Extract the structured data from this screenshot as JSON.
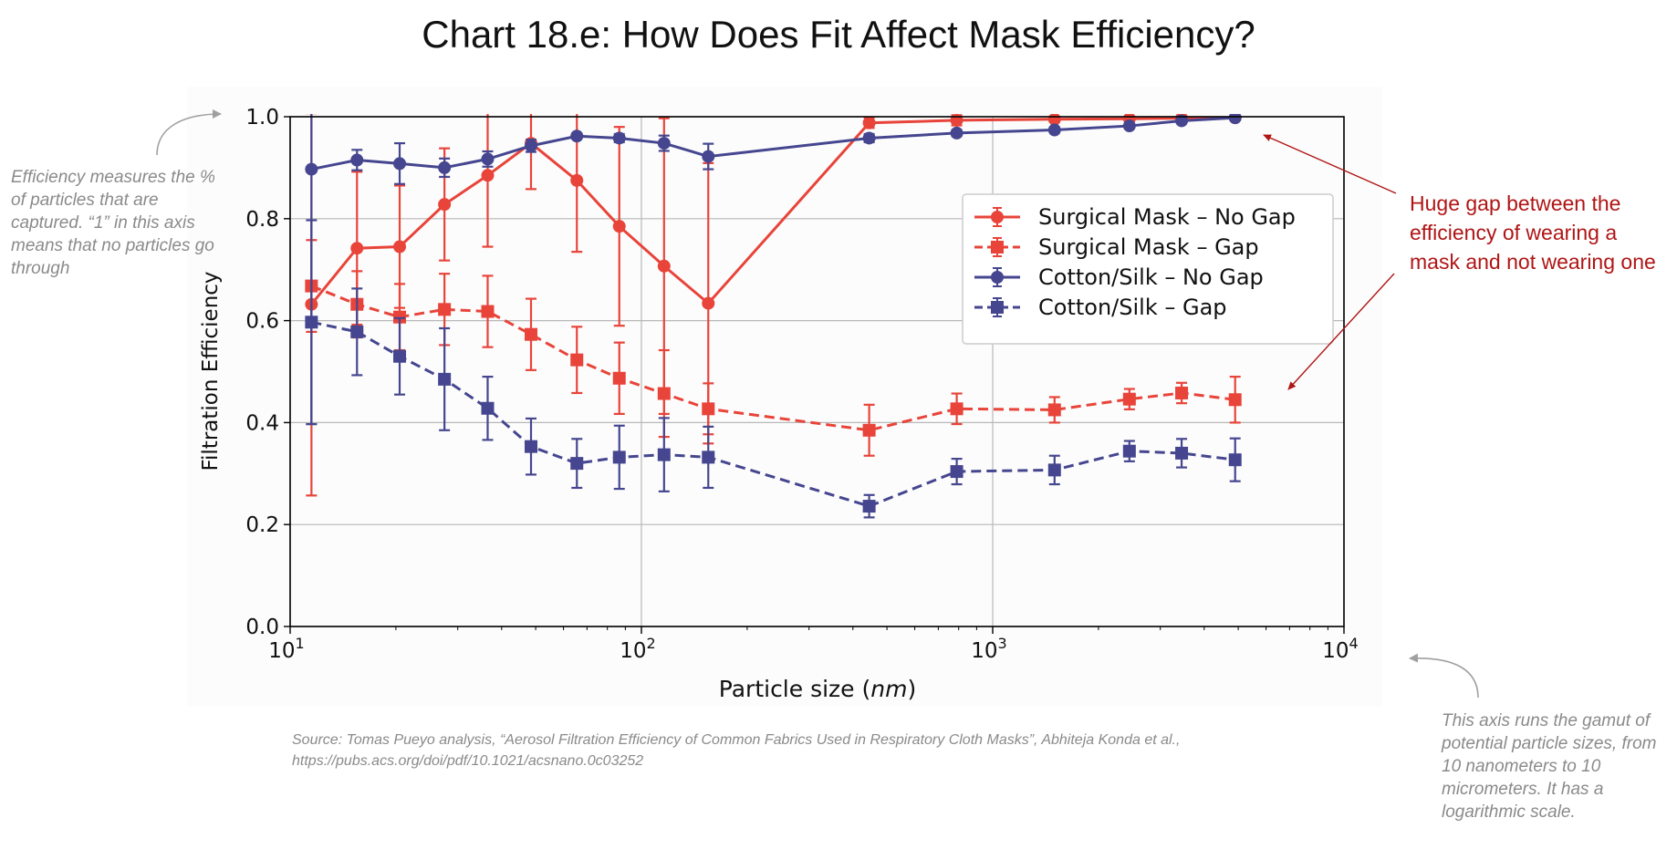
{
  "title": "Chart 18.e: How Does Fit Affect Mask Efficiency?",
  "annotations": {
    "left": "Efficiency measures the % of particles that are captured. “1” in this axis means that no particles go through",
    "right": "Huge gap between the efficiency of wearing a mask and not wearing one",
    "bottom": "This axis runs the gamut of potential particle sizes, from 10 nanometers to 10 micrometers. It has a logarithmic scale."
  },
  "source": {
    "line1": "Source: Tomas Pueyo analysis, “Aerosol Filtration Efficiency of Common Fabrics Used in Respiratory Cloth Masks”, Abhiteja Konda et al.,",
    "line2": "https://pubs.acs.org/doi/pdf/10.1021/acsnano.0c03252"
  },
  "colors": {
    "red": "#e8443a",
    "blue": "#45468f",
    "grid": "#b8b8b8",
    "annotation_red": "#b01515"
  },
  "chart_data": {
    "type": "line",
    "xscale": "log",
    "xlabel": "Particle size (nm)",
    "xlabel_prefix": "Particle size (",
    "xlabel_italic": "nm",
    "xlabel_suffix": ")",
    "ylabel": "Filtration Efficiency",
    "xlim": [
      10,
      10000
    ],
    "ylim": [
      0.0,
      1.0
    ],
    "x_ticks": [
      {
        "value": 10,
        "base": "10",
        "exp": "1"
      },
      {
        "value": 100,
        "base": "10",
        "exp": "2"
      },
      {
        "value": 1000,
        "base": "10",
        "exp": "3"
      },
      {
        "value": 10000,
        "base": "10",
        "exp": "4"
      }
    ],
    "y_ticks": [
      "0.0",
      "0.2",
      "0.4",
      "0.6",
      "0.8",
      "1.0"
    ],
    "grid": true,
    "legend_position": "upper-right",
    "series": [
      {
        "name": "Surgical Mask – No Gap",
        "color": "#e8443a",
        "marker": "circle",
        "dashed": false,
        "x": [
          11.5,
          15.5,
          20.5,
          27.5,
          36.5,
          48.5,
          65.5,
          86.5,
          116,
          155,
          445,
          790,
          1500,
          2450,
          3450,
          4900
        ],
        "y": [
          0.632,
          0.742,
          0.745,
          0.828,
          0.885,
          0.948,
          0.875,
          0.785,
          0.707,
          0.634,
          0.988,
          0.993,
          0.995,
          0.996,
          0.997,
          0.998
        ],
        "err": [
          0.375,
          0.15,
          0.12,
          0.11,
          0.14,
          0.09,
          0.14,
          0.195,
          0.29,
          0.275,
          0.01,
          0.01,
          0.005,
          0.004,
          0.003,
          0.002
        ]
      },
      {
        "name": "Surgical Mask – Gap",
        "color": "#e8443a",
        "marker": "square",
        "dashed": true,
        "x": [
          11.5,
          15.5,
          20.5,
          27.5,
          36.5,
          48.5,
          65.5,
          86.5,
          116,
          155,
          445,
          790,
          1500,
          2450,
          3450,
          4900
        ],
        "y": [
          0.668,
          0.632,
          0.607,
          0.622,
          0.618,
          0.573,
          0.523,
          0.487,
          0.457,
          0.427,
          0.385,
          0.427,
          0.425,
          0.446,
          0.458,
          0.445
        ],
        "err": [
          0.09,
          0.065,
          0.065,
          0.07,
          0.07,
          0.07,
          0.065,
          0.07,
          0.085,
          0.05,
          0.05,
          0.03,
          0.025,
          0.02,
          0.02,
          0.045
        ]
      },
      {
        "name": "Cotton/Silk – No Gap",
        "color": "#45468f",
        "marker": "circle",
        "dashed": false,
        "x": [
          11.5,
          15.5,
          20.5,
          27.5,
          36.5,
          48.5,
          65.5,
          86.5,
          116,
          155,
          445,
          790,
          1500,
          2450,
          3450,
          4900
        ],
        "y": [
          0.897,
          0.915,
          0.908,
          0.9,
          0.917,
          0.943,
          0.962,
          0.958,
          0.948,
          0.922,
          0.958,
          0.968,
          0.974,
          0.982,
          0.992,
          0.998
        ],
        "err": [
          0.5,
          0.02,
          0.04,
          0.018,
          0.015,
          0.012,
          0.005,
          0.008,
          0.015,
          0.025,
          0.008,
          0.006,
          0.005,
          0.004,
          0.003,
          0.002
        ]
      },
      {
        "name": "Cotton/Silk – Gap",
        "color": "#45468f",
        "marker": "square",
        "dashed": true,
        "x": [
          11.5,
          15.5,
          20.5,
          27.5,
          36.5,
          48.5,
          65.5,
          86.5,
          116,
          155,
          445,
          790,
          1500,
          2450,
          3450,
          4900
        ],
        "y": [
          0.597,
          0.578,
          0.53,
          0.485,
          0.428,
          0.353,
          0.32,
          0.332,
          0.337,
          0.332,
          0.236,
          0.304,
          0.307,
          0.344,
          0.34,
          0.327
        ],
        "err": [
          0.2,
          0.085,
          0.075,
          0.1,
          0.062,
          0.055,
          0.048,
          0.062,
          0.072,
          0.06,
          0.022,
          0.025,
          0.028,
          0.02,
          0.028,
          0.042
        ]
      }
    ]
  }
}
